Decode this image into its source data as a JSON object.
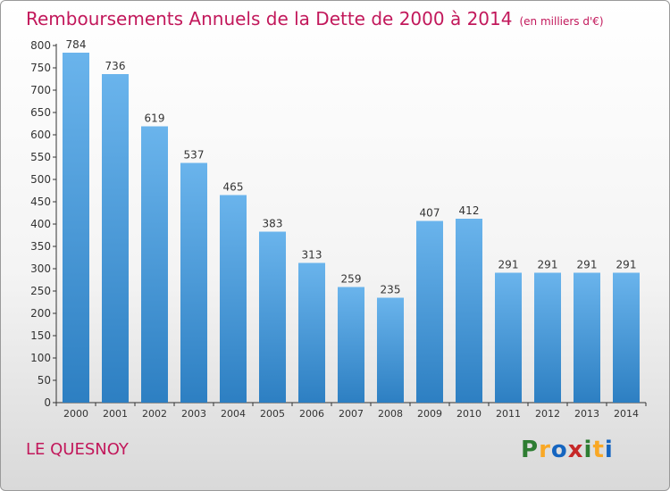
{
  "header": {
    "title": "Remboursements Annuels de la Dette de 2000 à 2014",
    "unit": "(en milliers d'€)"
  },
  "footer": {
    "city": "LE QUESNOY",
    "logo_letters": [
      "P",
      "r",
      "o",
      "x",
      "i",
      "t",
      "i"
    ],
    "logo_colors": [
      "#2e7d32",
      "#f9a825",
      "#1565c0",
      "#c62828",
      "#2e7d32",
      "#f9a825",
      "#1565c0"
    ]
  },
  "colors": {
    "bar_top": "#6ab4ec",
    "bar_bottom": "#2d7fc2",
    "title": "#c2185b",
    "axis": "#333333"
  },
  "chart_data": {
    "type": "bar",
    "categories": [
      "2000",
      "2001",
      "2002",
      "2003",
      "2004",
      "2005",
      "2006",
      "2007",
      "2008",
      "2009",
      "2010",
      "2011",
      "2012",
      "2013",
      "2014"
    ],
    "values": [
      784,
      736,
      619,
      537,
      465,
      383,
      313,
      259,
      235,
      407,
      412,
      291,
      291,
      291,
      291
    ],
    "title": "Remboursements Annuels de la Dette de 2000 à 2014",
    "ylim": [
      0,
      800
    ],
    "yticks": [
      0,
      50,
      100,
      150,
      200,
      250,
      300,
      350,
      400,
      450,
      500,
      550,
      600,
      650,
      700,
      750,
      800
    ],
    "grid": false,
    "data_labels": true
  }
}
